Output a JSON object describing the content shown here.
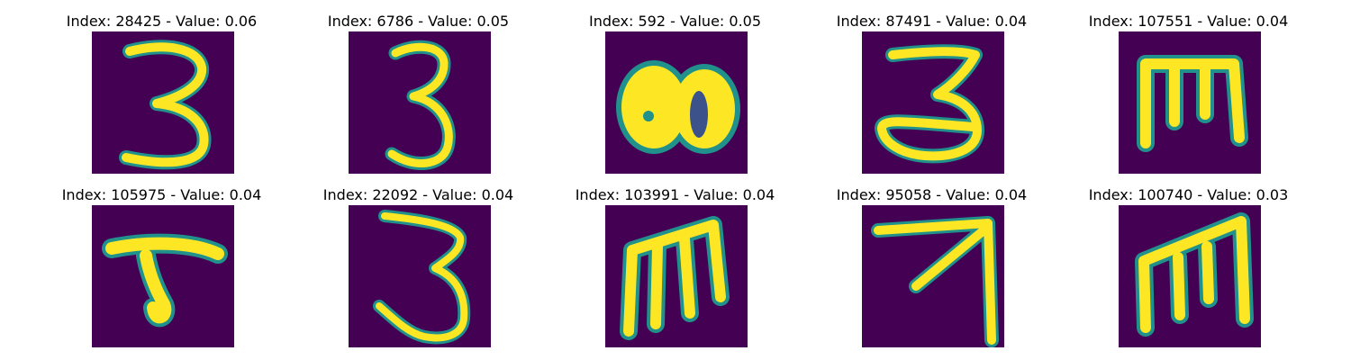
{
  "colors": {
    "background": "#440154",
    "foreground": "#fde725",
    "edge": "#21918c"
  },
  "panels": [
    {
      "title": "Index: 28425 - Value: 0.06",
      "index": 28425,
      "value": 0.06,
      "glyph": "digit-three"
    },
    {
      "title": "Index: 6786 - Value: 0.05",
      "index": 6786,
      "value": 0.05,
      "glyph": "digit-three"
    },
    {
      "title": "Index: 592 - Value: 0.05",
      "index": 592,
      "value": 0.05,
      "glyph": "blob"
    },
    {
      "title": "Index: 87491 - Value: 0.04",
      "index": 87491,
      "value": 0.04,
      "glyph": "digit-three"
    },
    {
      "title": "Index: 107551 - Value: 0.04",
      "index": 107551,
      "value": 0.04,
      "glyph": "letter-m"
    },
    {
      "title": "Index: 105975 - Value: 0.04",
      "index": 105975,
      "value": 0.04,
      "glyph": "hook-glyph"
    },
    {
      "title": "Index: 22092 - Value: 0.04",
      "index": 22092,
      "value": 0.04,
      "glyph": "digit-three"
    },
    {
      "title": "Index: 103991 - Value: 0.04",
      "index": 103991,
      "value": 0.04,
      "glyph": "letter-m"
    },
    {
      "title": "Index: 95058 - Value: 0.04",
      "index": 95058,
      "value": 0.04,
      "glyph": "arrow-glyph"
    },
    {
      "title": "Index: 100740 - Value: 0.03",
      "index": 100740,
      "value": 0.03,
      "glyph": "letter-m"
    }
  ]
}
